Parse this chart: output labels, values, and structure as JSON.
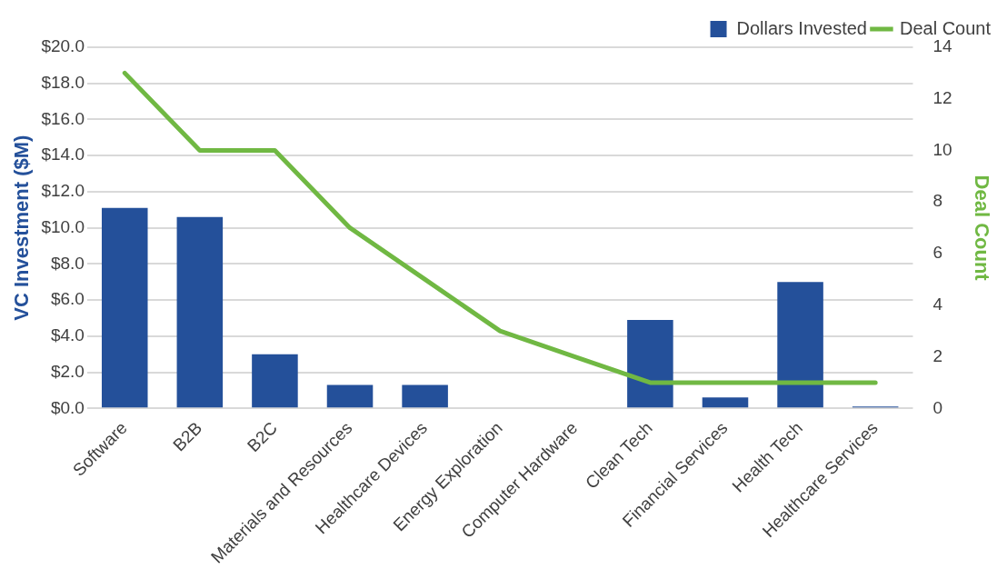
{
  "chart_data": {
    "type": "bar",
    "categories": [
      "Software",
      "B2B",
      "B2C",
      "Materials and Resources",
      "Healthcare Devices",
      "Energy Exploration",
      "Computer Hardware",
      "Clean Tech",
      "Financial Services",
      "Health Tech",
      "Healthcare Services"
    ],
    "series": [
      {
        "name": "Dollars Invested",
        "color": "#24509a",
        "values": [
          11.1,
          10.6,
          3.0,
          1.3,
          1.3,
          0,
          0,
          4.9,
          0.6,
          7.0,
          0.1
        ]
      },
      {
        "name": "Deal Count",
        "type": "line",
        "axis": "y2",
        "color": "#70b843",
        "values": [
          13,
          10,
          10,
          7,
          5,
          3,
          2,
          1,
          1,
          1,
          1
        ]
      }
    ],
    "ylabel": "VC Investment ($M)",
    "y2label": "Deal Count",
    "ylim": [
      0,
      20
    ],
    "yticks": [
      {
        "value": 0,
        "label": "$0.0"
      },
      {
        "value": 2,
        "label": "$2.0"
      },
      {
        "value": 4,
        "label": "$4.0"
      },
      {
        "value": 6,
        "label": "$6.0"
      },
      {
        "value": 8,
        "label": "$8.0"
      },
      {
        "value": 10,
        "label": "$10.0"
      },
      {
        "value": 12,
        "label": "$12.0"
      },
      {
        "value": 14,
        "label": "$14.0"
      },
      {
        "value": 16,
        "label": "$16.0"
      },
      {
        "value": 18,
        "label": "$18.0"
      },
      {
        "value": 20,
        "label": "$20.0"
      }
    ],
    "y2lim": [
      0,
      14
    ],
    "y2ticks": [
      0,
      2,
      4,
      6,
      8,
      10,
      12,
      14
    ],
    "grid": "y",
    "legend": "top right",
    "marker": "none"
  }
}
